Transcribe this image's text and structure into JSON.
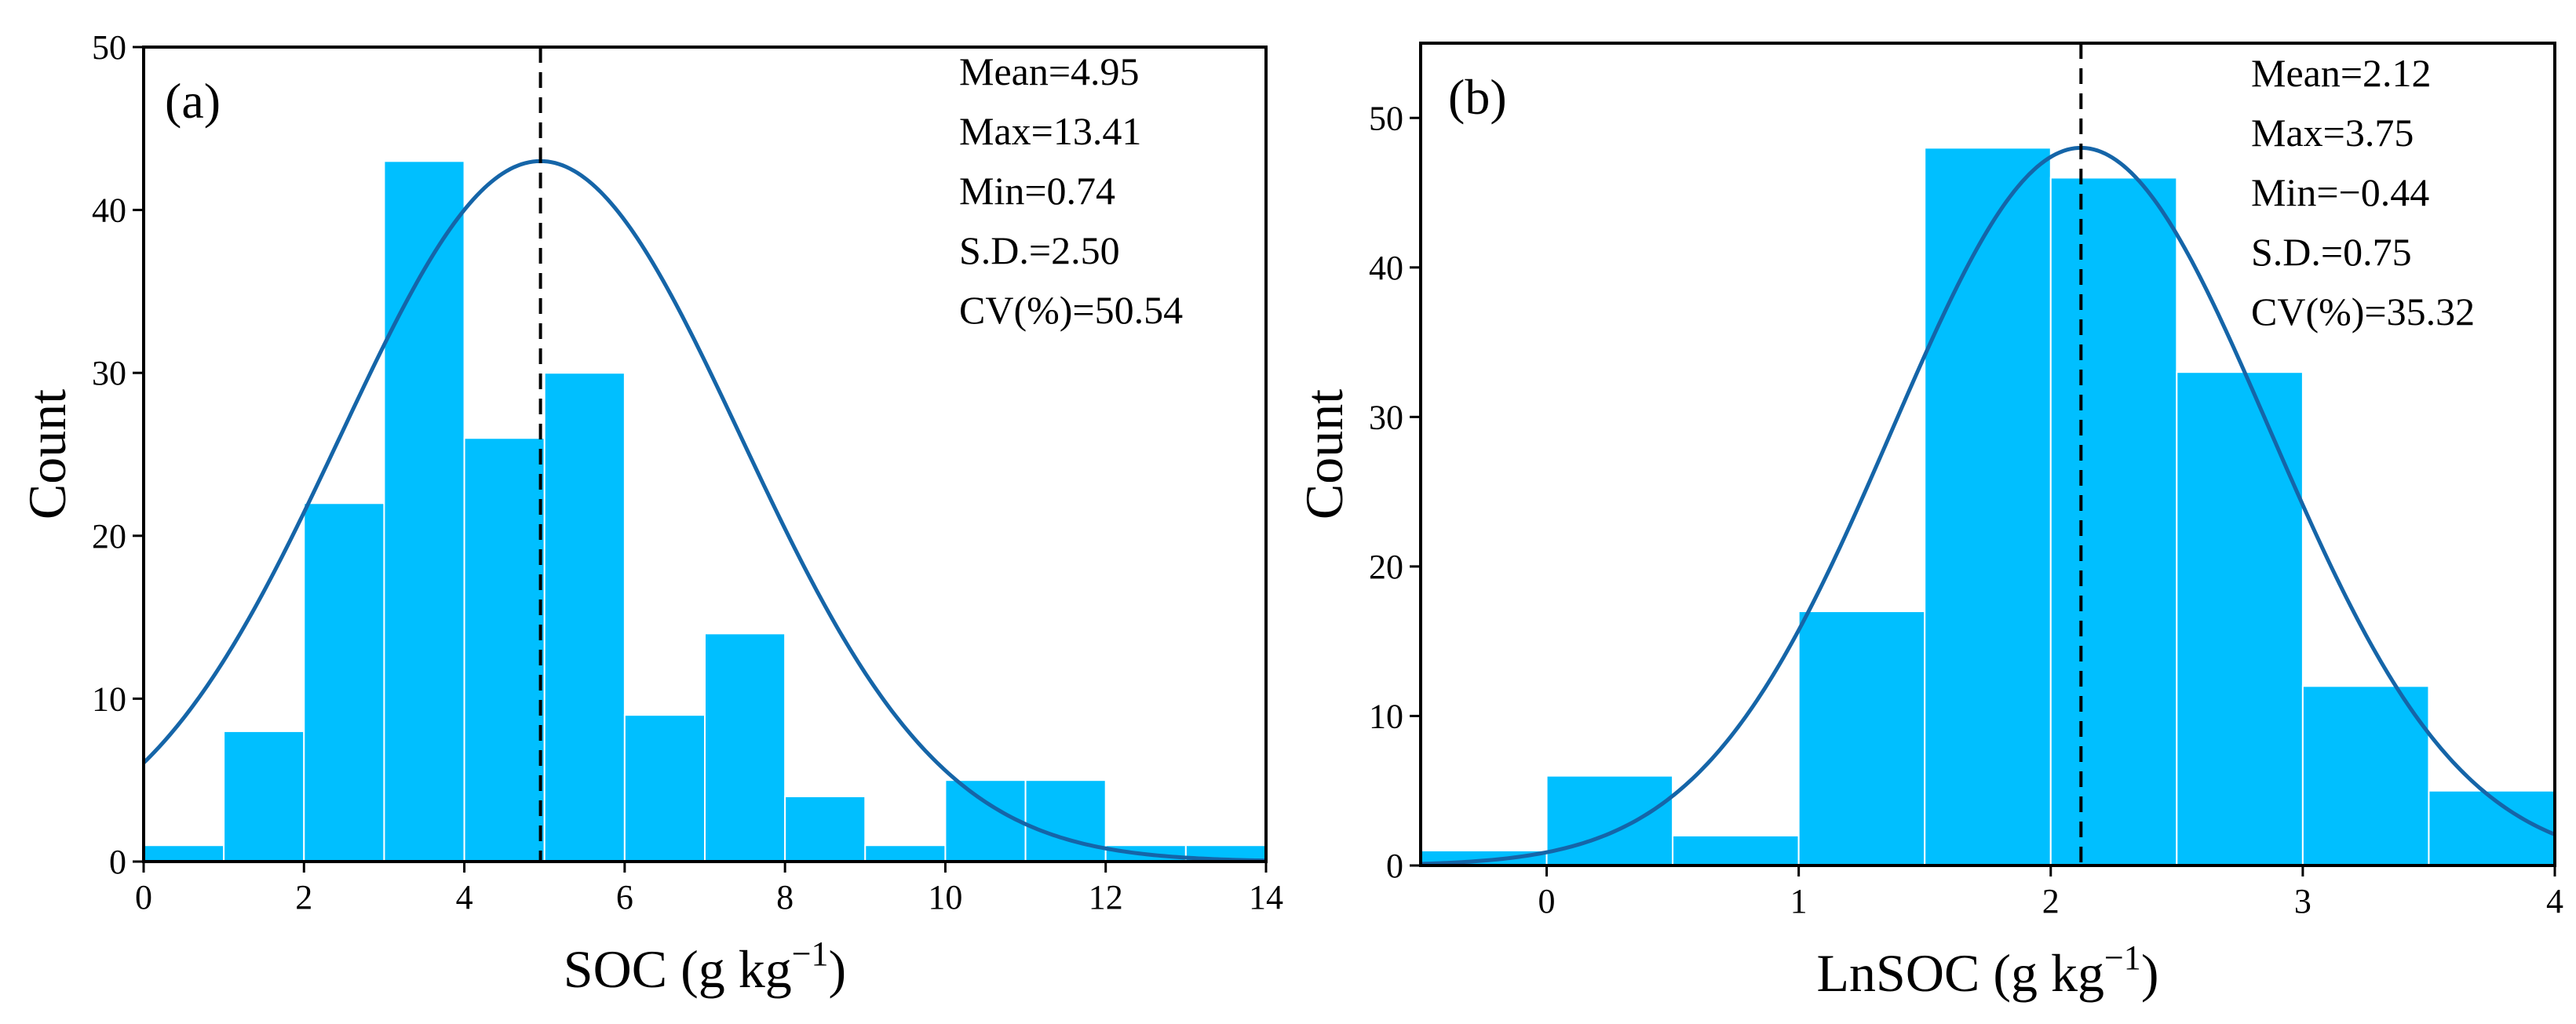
{
  "colors": {
    "bar": "#00BFFF",
    "bar_edge": "#ffffff",
    "curve": "#1565A8",
    "mean_line": "#000000",
    "axes": "#000000"
  },
  "chart_data": [
    {
      "type": "bar",
      "panel_label": "(a)",
      "xlabel": "SOC (g kg",
      "xlabel_sup": "−1",
      "xlabel_tail": ")",
      "ylabel": "Count",
      "xlim": [
        0,
        14
      ],
      "ylim": [
        0,
        50
      ],
      "xticks": [
        0,
        2,
        4,
        6,
        8,
        10,
        12,
        14
      ],
      "yticks": [
        0,
        10,
        20,
        30,
        40,
        50
      ],
      "bin_width": 1,
      "bins": [
        {
          "x0": 0,
          "x1": 1,
          "count": 1
        },
        {
          "x0": 1,
          "x1": 2,
          "count": 8
        },
        {
          "x0": 2,
          "x1": 3,
          "count": 22
        },
        {
          "x0": 3,
          "x1": 4,
          "count": 43
        },
        {
          "x0": 4,
          "x1": 5,
          "count": 26
        },
        {
          "x0": 5,
          "x1": 6,
          "count": 30
        },
        {
          "x0": 6,
          "x1": 7,
          "count": 9
        },
        {
          "x0": 7,
          "x1": 8,
          "count": 14
        },
        {
          "x0": 8,
          "x1": 9,
          "count": 4
        },
        {
          "x0": 9,
          "x1": 10,
          "count": 1
        },
        {
          "x0": 10,
          "x1": 11,
          "count": 5
        },
        {
          "x0": 11,
          "x1": 12,
          "count": 5
        },
        {
          "x0": 12,
          "x1": 13,
          "count": 1
        },
        {
          "x0": 13,
          "x1": 14,
          "count": 1
        }
      ],
      "normal_fit": {
        "mean": 4.95,
        "sd": 2.5,
        "peak": 43
      },
      "mean_line_x": 4.95,
      "stats": [
        "Mean=4.95",
        "Max=13.41",
        "Min=0.74",
        "S.D.=2.50",
        "CV(%)=50.54"
      ],
      "grid": false
    },
    {
      "type": "bar",
      "panel_label": "(b)",
      "xlabel": "LnSOC (g kg",
      "xlabel_sup": "−1",
      "xlabel_tail": ")",
      "ylabel": "Count",
      "xlim": [
        -0.5,
        4
      ],
      "ylim": [
        0,
        55
      ],
      "xticks": [
        0,
        1,
        2,
        3,
        4
      ],
      "yticks": [
        0,
        10,
        20,
        30,
        40,
        50
      ],
      "bin_width": 0.5,
      "bins": [
        {
          "x0": -0.5,
          "x1": 0,
          "count": 1
        },
        {
          "x0": 0,
          "x1": 0.5,
          "count": 6
        },
        {
          "x0": 0.5,
          "x1": 1,
          "count": 2
        },
        {
          "x0": 1,
          "x1": 1.5,
          "count": 17
        },
        {
          "x0": 1.5,
          "x1": 2,
          "count": 48
        },
        {
          "x0": 2,
          "x1": 2.5,
          "count": 46
        },
        {
          "x0": 2.5,
          "x1": 3,
          "count": 33
        },
        {
          "x0": 3,
          "x1": 3.5,
          "count": 12
        },
        {
          "x0": 3.5,
          "x1": 4,
          "count": 5
        }
      ],
      "normal_fit": {
        "mean": 2.12,
        "sd": 0.75,
        "peak": 48
      },
      "mean_line_x": 2.12,
      "stats": [
        "Mean=2.12",
        "Max=3.75",
        "Min=−0.44",
        "S.D.=0.75",
        "CV(%)=35.32"
      ],
      "grid": false
    }
  ]
}
